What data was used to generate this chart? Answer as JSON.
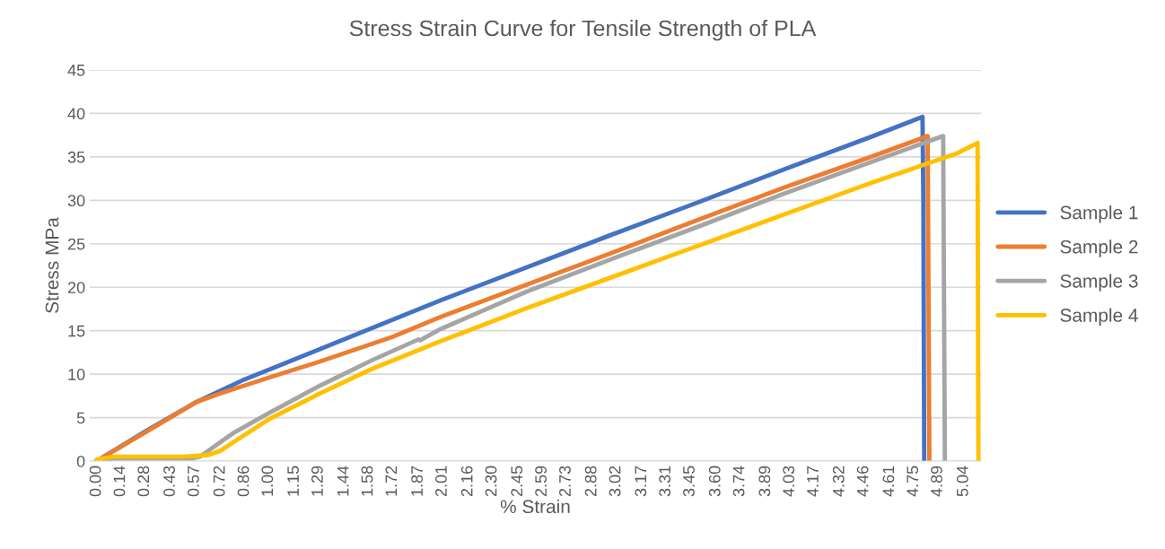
{
  "chart_data": {
    "type": "line",
    "title": "Stress Strain Curve for Tensile Strength of PLA",
    "xlabel": "% Strain",
    "ylabel": "Stress MPa",
    "xlim": [
      -0.04,
      5.14
    ],
    "ylim": [
      0,
      45
    ],
    "yticks": [
      0,
      5,
      10,
      15,
      20,
      25,
      30,
      35,
      40,
      45
    ],
    "xticks": [
      {
        "value": 0.0,
        "label": "0.00"
      },
      {
        "value": 0.14,
        "label": "0.14"
      },
      {
        "value": 0.28,
        "label": "0.28"
      },
      {
        "value": 0.43,
        "label": "0.43"
      },
      {
        "value": 0.57,
        "label": "0.57"
      },
      {
        "value": 0.72,
        "label": "0.72"
      },
      {
        "value": 0.86,
        "label": "0.86"
      },
      {
        "value": 1.0,
        "label": "1.00"
      },
      {
        "value": 1.15,
        "label": "1.15"
      },
      {
        "value": 1.29,
        "label": "1.29"
      },
      {
        "value": 1.44,
        "label": "1.44"
      },
      {
        "value": 1.58,
        "label": "1.58"
      },
      {
        "value": 1.72,
        "label": "1.72"
      },
      {
        "value": 1.87,
        "label": "1.87"
      },
      {
        "value": 2.01,
        "label": "2.01"
      },
      {
        "value": 2.16,
        "label": "2.16"
      },
      {
        "value": 2.3,
        "label": "2.30"
      },
      {
        "value": 2.45,
        "label": "2.45"
      },
      {
        "value": 2.59,
        "label": "2.59"
      },
      {
        "value": 2.73,
        "label": "2.73"
      },
      {
        "value": 2.88,
        "label": "2.88"
      },
      {
        "value": 3.02,
        "label": "3.02"
      },
      {
        "value": 3.17,
        "label": "3.17"
      },
      {
        "value": 3.31,
        "label": "3.31"
      },
      {
        "value": 3.45,
        "label": "3.45"
      },
      {
        "value": 3.6,
        "label": "3.60"
      },
      {
        "value": 3.74,
        "label": "3.74"
      },
      {
        "value": 3.89,
        "label": "3.89"
      },
      {
        "value": 4.03,
        "label": "4.03"
      },
      {
        "value": 4.17,
        "label": "4.17"
      },
      {
        "value": 4.32,
        "label": "4.32"
      },
      {
        "value": 4.46,
        "label": "4.46"
      },
      {
        "value": 4.61,
        "label": "4.61"
      },
      {
        "value": 4.75,
        "label": "4.75"
      },
      {
        "value": 4.89,
        "label": "4.89"
      },
      {
        "value": 5.04,
        "label": "5.04"
      }
    ],
    "grid": "y",
    "legend": "right",
    "marker": "none",
    "line_style": "solid",
    "series": [
      {
        "name": "Sample 1",
        "color": "#4472c4",
        "x": [
          0,
          0.29,
          0.58,
          0.86,
          1.1,
          1.5,
          2.0,
          2.5,
          3.0,
          3.5,
          4.0,
          4.5,
          4.8,
          4.805,
          4.81
        ],
        "values": [
          0,
          3.5,
          6.8,
          9.4,
          11.3,
          14.5,
          18.5,
          22.3,
          26.1,
          29.8,
          33.6,
          37.3,
          39.6,
          30,
          0
        ]
      },
      {
        "name": "Sample 2",
        "color": "#ed7d31",
        "x": [
          0,
          0.29,
          0.58,
          0.72,
          1.0,
          1.29,
          1.72,
          2.0,
          2.5,
          3.0,
          3.5,
          4.0,
          4.5,
          4.83,
          4.84
        ],
        "values": [
          0,
          3.4,
          6.8,
          7.8,
          9.6,
          11.4,
          14.3,
          16.6,
          20.3,
          24.0,
          27.8,
          31.5,
          35.0,
          37.4,
          0
        ]
      },
      {
        "name": "Sample 3",
        "color": "#a5a5a5",
        "x": [
          0,
          0.1,
          0.55,
          0.6,
          0.8,
          1.0,
          1.3,
          1.6,
          1.87,
          1.88,
          2.0,
          2.5,
          3.0,
          3.5,
          4.0,
          4.5,
          4.92,
          4.93
        ],
        "values": [
          0,
          0.3,
          0.3,
          0.5,
          3.3,
          5.5,
          8.7,
          11.6,
          14.0,
          13.9,
          15.2,
          19.5,
          23.3,
          27.0,
          30.8,
          34.4,
          37.4,
          0
        ]
      },
      {
        "name": "Sample 4",
        "color": "#ffc000",
        "x": [
          0,
          0.1,
          0.5,
          0.65,
          0.72,
          1.0,
          1.3,
          1.6,
          2.0,
          2.5,
          3.0,
          3.5,
          4.0,
          4.5,
          5.0,
          5.12,
          5.125
        ],
        "values": [
          0.2,
          0.5,
          0.5,
          0.7,
          1.2,
          4.8,
          7.8,
          10.6,
          13.8,
          17.6,
          21.2,
          24.8,
          28.4,
          32.0,
          35.4,
          36.6,
          0
        ]
      }
    ]
  }
}
